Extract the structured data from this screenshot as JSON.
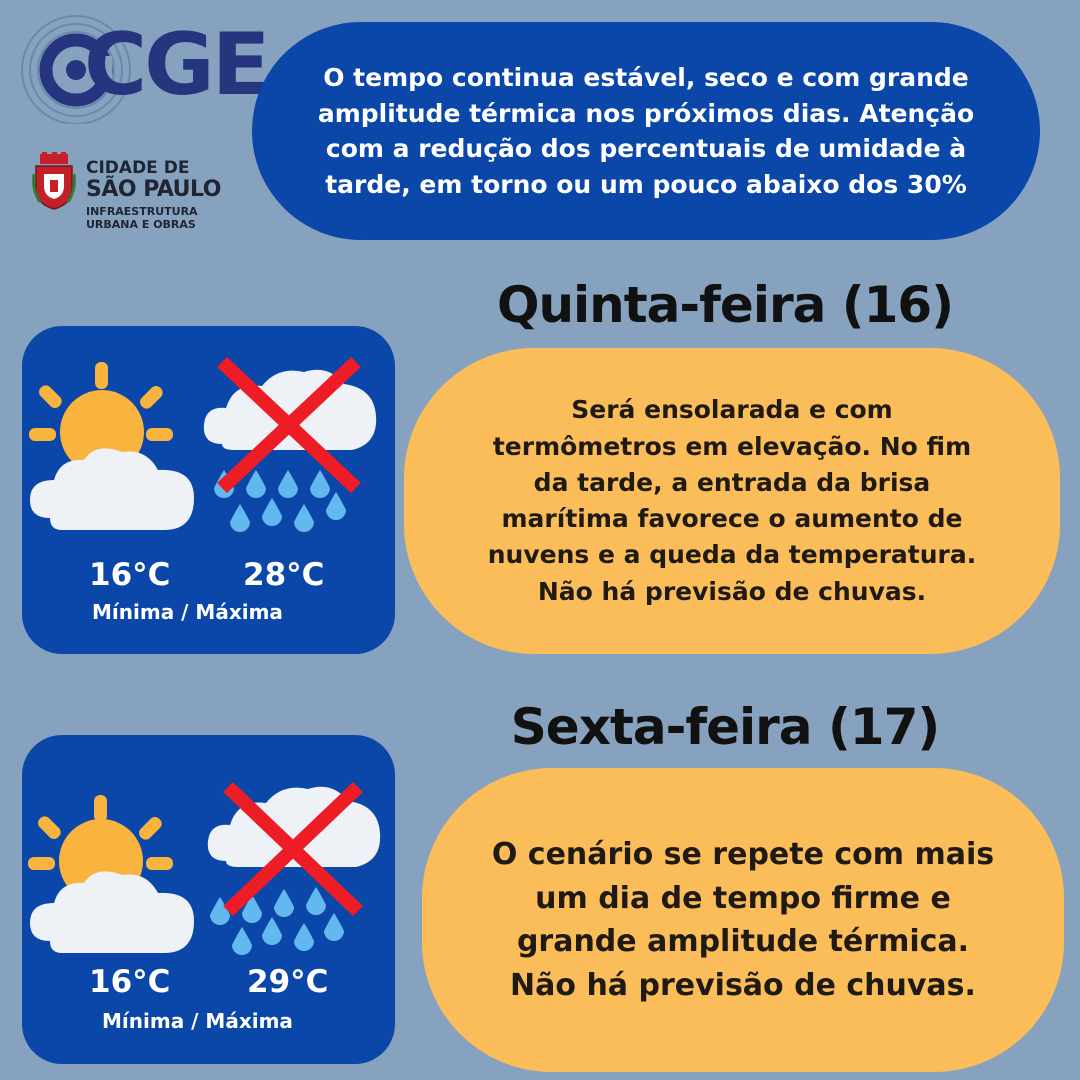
{
  "logo": {
    "name": "CGE",
    "city_line1": "CIDADE DE",
    "city_line2": "SÃO PAULO",
    "city_line3": "INFRAESTRUTURA\nURBANA E OBRAS"
  },
  "intro": "O tempo continua estável, seco e com grande\namplitude térmica nos próximos dias. Atenção\ncom a redução dos percentuais de umidade à\ntarde, em torno ou um pouco abaixo dos 30%",
  "days": [
    {
      "title": "Quinta-feira (16)",
      "min": "16°C",
      "max": "28°C",
      "label": "Mínima / Máxima",
      "text": "Será ensolarada e com\ntermômetros em elevação. No fim\nda tarde, a entrada da brisa\nmarítima favorece o aumento de\nnuvens e a queda da temperatura.\nNão há previsão de chuvas."
    },
    {
      "title": "Sexta-feira (17)",
      "min": "16°C",
      "max": "29°C",
      "label": "Mínima / Máxima",
      "text": "O cenário se repete com mais\num dia de tempo firme e\ngrande amplitude térmica.\nNão há previsão de chuvas."
    }
  ],
  "icons": {
    "sun_cloud": "partly-sunny-icon",
    "no_rain": "no-rain-icon"
  },
  "colors": {
    "background": "#87a2bf",
    "blue": "#0a47a9",
    "orange": "#fbbd59",
    "sun": "#f9b33f",
    "cloud": "#eef2f7",
    "rain": "#63b8f0",
    "cross": "#ee1c25"
  }
}
